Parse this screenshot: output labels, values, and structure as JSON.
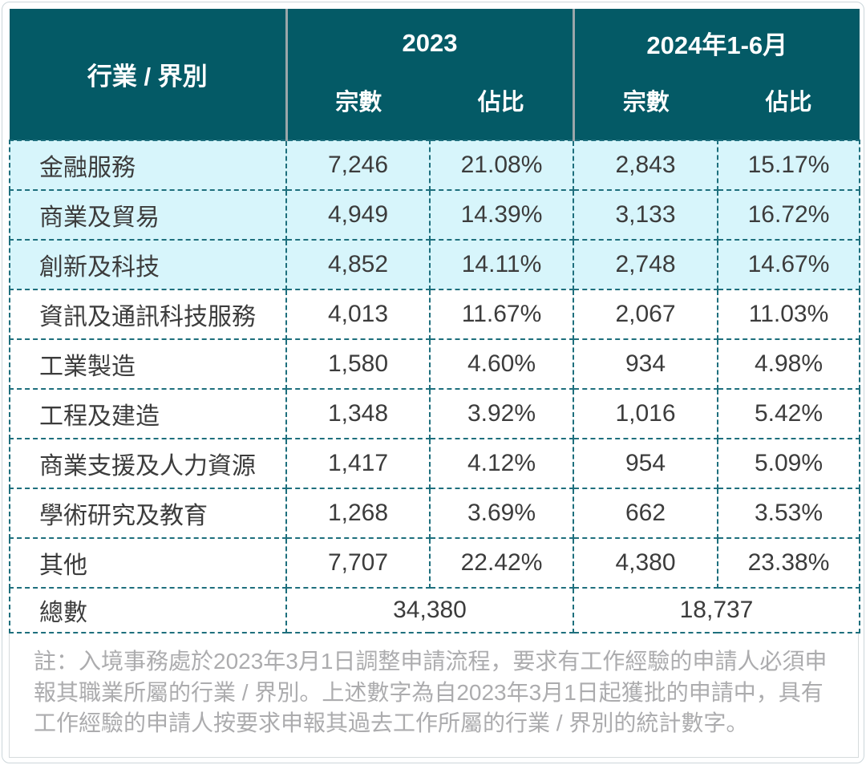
{
  "colors": {
    "header_bg": "#045A66",
    "header_text": "#FFFFFF",
    "highlight_row_bg": "#D7F5FB",
    "dashed_border": "#1E6F7D",
    "header_divider": "#9BA6A9",
    "body_text": "#3C3C3C",
    "footnote_text": "#ACACAE",
    "frame_border": "#CCD6DA"
  },
  "table": {
    "corner_header": "行業 / 界別",
    "groups": [
      {
        "label": "2023",
        "columns": [
          "宗數",
          "佔比"
        ]
      },
      {
        "label": "2024年1-6月",
        "columns": [
          "宗數",
          "佔比"
        ]
      }
    ],
    "rows": [
      {
        "label": "金融服務",
        "c2023_count": "7,246",
        "c2023_share": "21.08%",
        "c2024_count": "2,843",
        "c2024_share": "15.17%",
        "highlighted": true
      },
      {
        "label": "商業及貿易",
        "c2023_count": "4,949",
        "c2023_share": "14.39%",
        "c2024_count": "3,133",
        "c2024_share": "16.72%",
        "highlighted": true
      },
      {
        "label": "創新及科技",
        "c2023_count": "4,852",
        "c2023_share": "14.11%",
        "c2024_count": "2,748",
        "c2024_share": "14.67%",
        "highlighted": true
      },
      {
        "label": "資訊及通訊科技服務",
        "c2023_count": "4,013",
        "c2023_share": "11.67%",
        "c2024_count": "2,067",
        "c2024_share": "11.03%",
        "highlighted": false
      },
      {
        "label": "工業製造",
        "c2023_count": "1,580",
        "c2023_share": "4.60%",
        "c2024_count": "934",
        "c2024_share": "4.98%",
        "highlighted": false
      },
      {
        "label": "工程及建造",
        "c2023_count": "1,348",
        "c2023_share": "3.92%",
        "c2024_count": "1,016",
        "c2024_share": "5.42%",
        "highlighted": false
      },
      {
        "label": "商業支援及人力資源",
        "c2023_count": "1,417",
        "c2023_share": "4.12%",
        "c2024_count": "954",
        "c2024_share": "5.09%",
        "highlighted": false
      },
      {
        "label": "學術研究及教育",
        "c2023_count": "1,268",
        "c2023_share": "3.69%",
        "c2024_count": "662",
        "c2024_share": "3.53%",
        "highlighted": false
      },
      {
        "label": "其他",
        "c2023_count": "7,707",
        "c2023_share": "22.42%",
        "c2024_count": "4,380",
        "c2024_share": "23.38%",
        "highlighted": false
      }
    ],
    "total_row": {
      "label": "總數",
      "c2023_total": "34,380",
      "c2024_total": "18,737"
    }
  },
  "footnote": "註：入境事務處於2023年3月1日調整申請流程，要求有工作經驗的申請人必須申報其職業所屬的行業 / 界別。上述數字為自2023年3月1日起獲批的申請中，具有工作經驗的申請人按要求申報其過去工作所屬的行業 / 界別的統計數字。",
  "chart_data": {
    "type": "table",
    "title": "行業 / 界別 申請統計",
    "columns": [
      "行業 / 界別",
      "2023 宗數",
      "2023 佔比",
      "2024年1-6月 宗數",
      "2024年1-6月 佔比"
    ],
    "rows": [
      [
        "金融服務",
        7246,
        "21.08%",
        2843,
        "15.17%"
      ],
      [
        "商業及貿易",
        4949,
        "14.39%",
        3133,
        "16.72%"
      ],
      [
        "創新及科技",
        4852,
        "14.11%",
        2748,
        "14.67%"
      ],
      [
        "資訊及通訊科技服務",
        4013,
        "11.67%",
        2067,
        "11.03%"
      ],
      [
        "工業製造",
        1580,
        "4.60%",
        934,
        "4.98%"
      ],
      [
        "工程及建造",
        1348,
        "3.92%",
        1016,
        "5.42%"
      ],
      [
        "商業支援及人力資源",
        1417,
        "4.12%",
        954,
        "5.09%"
      ],
      [
        "學術研究及教育",
        1268,
        "3.69%",
        662,
        "3.53%"
      ],
      [
        "其他",
        7707,
        "22.42%",
        4380,
        "23.38%"
      ]
    ],
    "totals": {
      "label": "總數",
      "count_2023": 34380,
      "count_2024_jan_jun": 18737
    }
  }
}
